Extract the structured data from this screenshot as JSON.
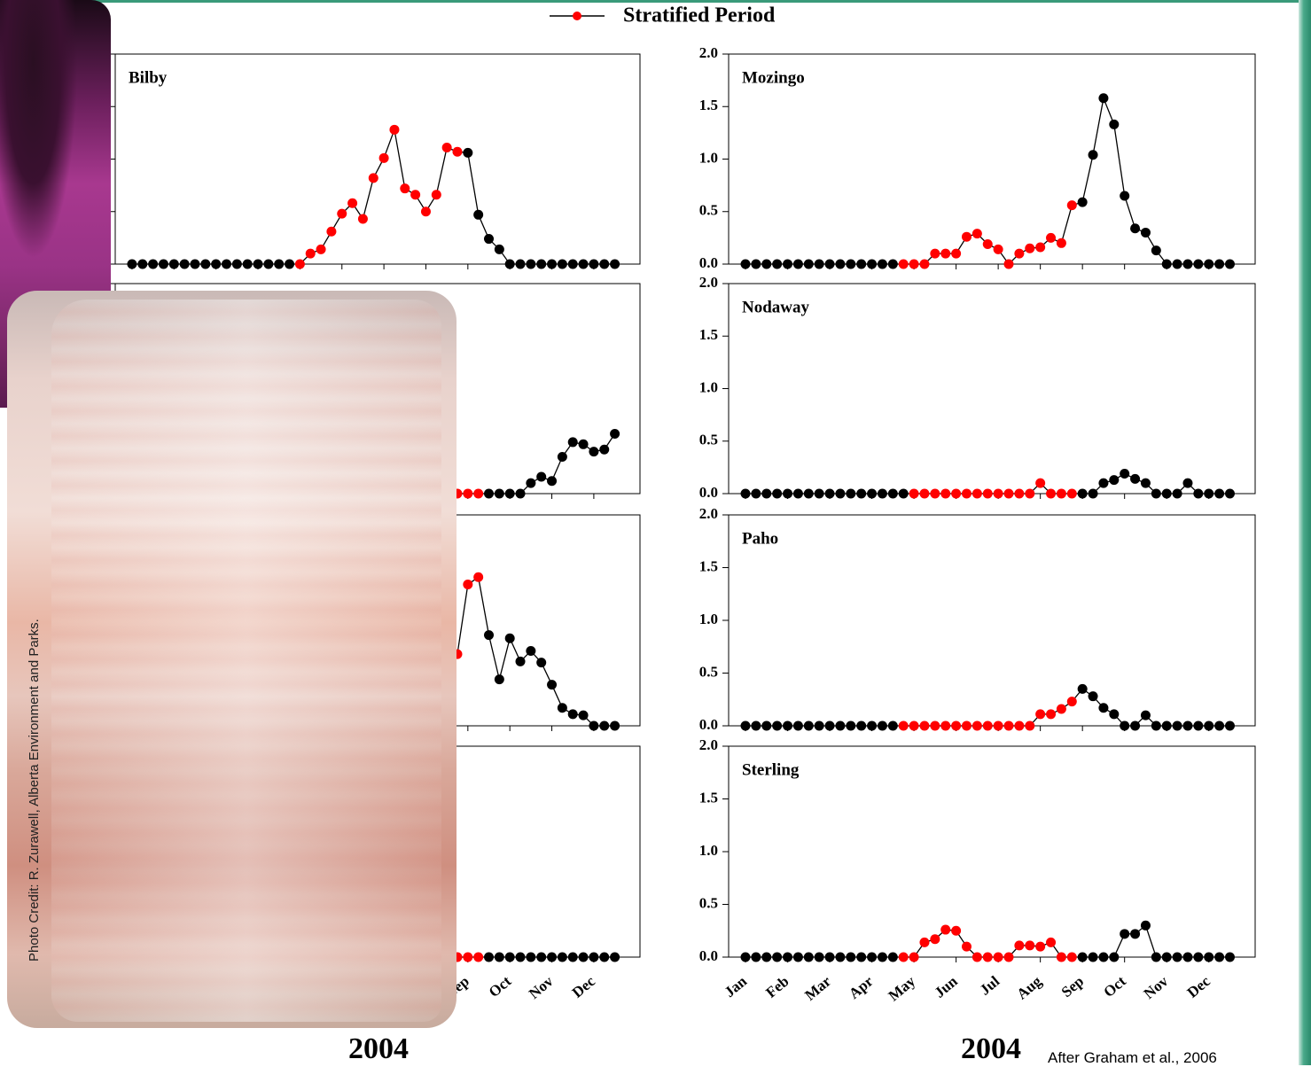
{
  "chart_data": {
    "type": "line",
    "legend": {
      "label": "Stratified Period",
      "color": "#ff0000"
    },
    "line_color": "#000000",
    "x": [
      0,
      0.25,
      0.5,
      0.75,
      1,
      1.25,
      1.5,
      1.75,
      2,
      2.25,
      2.5,
      2.75,
      3,
      3.25,
      3.5,
      3.75,
      4,
      4.25,
      4.5,
      4.75,
      5,
      5.25,
      5.5,
      5.75,
      6,
      6.25,
      6.5,
      6.75,
      7,
      7.25,
      7.5,
      7.75,
      8,
      8.25,
      8.5,
      8.75,
      9,
      9.25,
      9.5,
      9.75,
      10,
      10.25,
      10.5,
      10.75,
      11,
      11.25,
      11.5
    ],
    "xlim": [
      -0.4,
      12.1
    ],
    "xticks": [
      {
        "value": 0,
        "label": "Jan"
      },
      {
        "value": 1,
        "label": "Feb"
      },
      {
        "value": 2,
        "label": "Mar"
      },
      {
        "value": 3,
        "label": "Apr"
      },
      {
        "value": 4,
        "label": "May"
      },
      {
        "value": 5,
        "label": "Jun"
      },
      {
        "value": 6,
        "label": "Jul"
      },
      {
        "value": 7,
        "label": "Aug"
      },
      {
        "value": 8,
        "label": "Sep"
      },
      {
        "value": 9,
        "label": "Oct"
      },
      {
        "value": 10,
        "label": "Nov"
      },
      {
        "value": 11,
        "label": "Dec"
      }
    ],
    "ylim": [
      0,
      2
    ],
    "yticks": [
      {
        "value": 0,
        "label": "0.0"
      },
      {
        "value": 0.5,
        "label": "0.5"
      },
      {
        "value": 1,
        "label": "1.0"
      },
      {
        "value": 1.5,
        "label": "1.5"
      },
      {
        "value": 2,
        "label": "2.0"
      }
    ],
    "columns": [
      {
        "xlabel": "2004",
        "panels": [
          {
            "title": "Bilby",
            "stratified_period": [
              4,
              7.75
            ],
            "values": [
              0,
              0,
              0,
              0,
              0,
              0,
              0,
              0,
              0,
              0,
              0,
              0,
              0,
              0,
              0,
              0,
              0,
              0.1,
              0.14,
              0.31,
              0.48,
              0.58,
              0.43,
              0.82,
              1.01,
              1.28,
              0.72,
              0.66,
              0.5,
              0.66,
              1.11,
              1.07,
              1.06,
              0.47,
              0.24,
              0.14,
              0,
              0,
              0,
              0,
              0,
              0,
              0,
              0,
              0,
              0,
              0
            ]
          },
          {
            "stratified_period": [
              null,
              8.25
            ],
            "values": [
              null,
              null,
              null,
              null,
              null,
              null,
              null,
              null,
              null,
              null,
              null,
              null,
              null,
              null,
              null,
              null,
              null,
              null,
              null,
              null,
              null,
              null,
              null,
              null,
              null,
              null,
              null,
              null,
              null,
              null,
              null,
              0,
              0,
              0,
              0,
              0,
              0,
              0,
              0.1,
              0.16,
              0.12,
              0.35,
              0.49,
              0.47,
              0.4,
              0.42,
              0.57
            ]
          },
          {
            "stratified_period": [
              null,
              8.25
            ],
            "values": [
              null,
              null,
              null,
              null,
              null,
              null,
              null,
              null,
              null,
              null,
              null,
              null,
              null,
              null,
              null,
              null,
              null,
              null,
              null,
              null,
              null,
              null,
              null,
              null,
              null,
              null,
              null,
              null,
              null,
              null,
              null,
              0.68,
              1.34,
              1.41,
              0.86,
              0.44,
              0.83,
              0.61,
              0.71,
              0.6,
              0.39,
              0.17,
              0.11,
              0.1,
              0,
              0,
              0
            ]
          },
          {
            "stratified_period": [
              null,
              8.25
            ],
            "values": [
              null,
              null,
              null,
              null,
              null,
              null,
              null,
              null,
              null,
              null,
              null,
              null,
              null,
              null,
              null,
              null,
              null,
              null,
              null,
              null,
              null,
              null,
              null,
              null,
              null,
              null,
              null,
              null,
              null,
              null,
              null,
              0,
              0,
              0,
              0,
              0,
              0,
              0,
              0,
              0,
              0,
              0,
              0,
              0,
              0,
              0,
              0
            ]
          }
        ]
      },
      {
        "xlabel": "2004",
        "note": "After Graham et al., 2006",
        "panels": [
          {
            "title": "Mozingo",
            "stratified_period": [
              3.75,
              7.75
            ],
            "values": [
              0,
              0,
              0,
              0,
              0,
              0,
              0,
              0,
              0,
              0,
              0,
              0,
              0,
              0,
              0,
              0,
              0,
              0,
              0.1,
              0.1,
              0.1,
              0.26,
              0.29,
              0.19,
              0.14,
              0,
              0.1,
              0.15,
              0.16,
              0.25,
              0.2,
              0.56,
              0.59,
              1.04,
              1.58,
              1.33,
              0.65,
              0.34,
              0.3,
              0.13,
              0,
              0,
              0,
              0,
              0,
              0,
              0
            ]
          },
          {
            "title": "Nodaway",
            "stratified_period": [
              4,
              7.75
            ],
            "values": [
              0,
              0,
              0,
              0,
              0,
              0,
              0,
              0,
              0,
              0,
              0,
              0,
              0,
              0,
              0,
              0,
              0,
              0,
              0,
              0,
              0,
              0,
              0,
              0,
              0,
              0,
              0,
              0,
              0.1,
              0,
              0,
              0,
              0,
              0,
              0.1,
              0.13,
              0.19,
              0.14,
              0.1,
              0,
              0,
              0,
              0.1,
              0,
              0,
              0,
              0
            ]
          },
          {
            "title": "Paho",
            "stratified_period": [
              3.75,
              7.75
            ],
            "values": [
              0,
              0,
              0,
              0,
              0,
              0,
              0,
              0,
              0,
              0,
              0,
              0,
              0,
              0,
              0,
              0,
              0,
              0,
              0,
              0,
              0,
              0,
              0,
              0,
              0,
              0,
              0,
              0,
              0.11,
              0.11,
              0.16,
              0.23,
              0.35,
              0.28,
              0.17,
              0.11,
              0,
              0,
              0.1,
              0,
              0,
              0,
              0,
              0,
              0,
              0,
              0
            ]
          },
          {
            "title": "Sterling",
            "stratified_period": [
              3.75,
              7.75
            ],
            "values": [
              0,
              0,
              0,
              0,
              0,
              0,
              0,
              0,
              0,
              0,
              0,
              0,
              0,
              0,
              0,
              0,
              0,
              0.14,
              0.17,
              0.26,
              0.25,
              0.1,
              0,
              0,
              0,
              0,
              0.11,
              0.11,
              0.1,
              0.14,
              0,
              0,
              0,
              0,
              0,
              0,
              0.22,
              0.22,
              0.3,
              0,
              0,
              0,
              0,
              0,
              0,
              0,
              0
            ]
          }
        ]
      }
    ],
    "photo_credit": "Photo Credit: R. Zurawell, Alberta Environment and Parks."
  }
}
